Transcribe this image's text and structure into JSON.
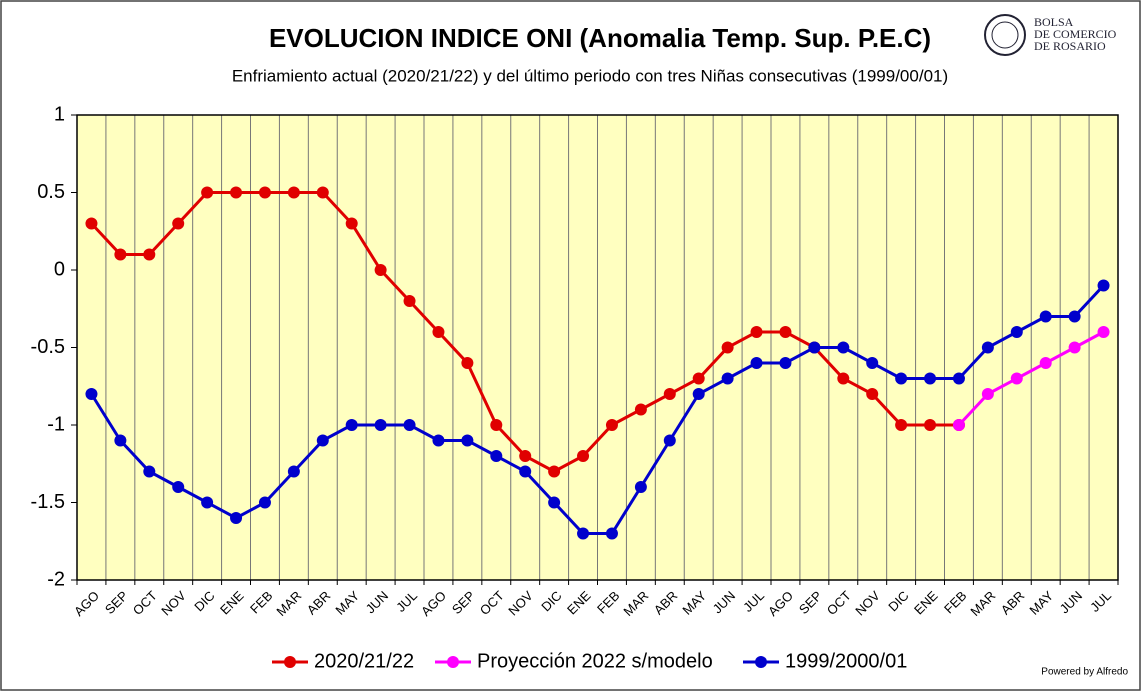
{
  "chart_data": {
    "type": "line",
    "title": "EVOLUCION INDICE ONI (Anomalia Temp. Sup. P.E.C)",
    "subtitle": "Enfriamiento actual (2020/21/22) y del último periodo con tres Niñas consecutivas (1999/00/01)",
    "logo": [
      "BOLSA",
      "DE COMERCIO",
      "DE ROSARIO"
    ],
    "credit": "Powered by Alfredo",
    "categories": [
      "AGO",
      "SEP",
      "OCT",
      "NOV",
      "DIC",
      "ENE",
      "FEB",
      "MAR",
      "ABR",
      "MAY",
      "JUN",
      "JUL",
      "AGO",
      "SEP",
      "OCT",
      "NOV",
      "DIC",
      "ENE",
      "FEB",
      "MAR",
      "ABR",
      "MAY",
      "JUN",
      "JUL",
      "AGO",
      "SEP",
      "OCT",
      "NOV",
      "DIC",
      "ENE",
      "FEB",
      "MAR",
      "ABR",
      "MAY",
      "JUN",
      "JUL"
    ],
    "series": [
      {
        "name": "2020/21/22",
        "color": "#e00000",
        "values": [
          0.3,
          0.1,
          0.1,
          0.3,
          0.5,
          0.5,
          0.5,
          0.5,
          0.5,
          0.3,
          0,
          -0.2,
          -0.4,
          -0.6,
          -1,
          -1.2,
          -1.3,
          -1.2,
          -1,
          -0.9,
          -0.8,
          -0.7,
          -0.5,
          -0.4,
          -0.4,
          -0.5,
          -0.7,
          -0.8,
          -1,
          -1,
          -1,
          null,
          null,
          null,
          null,
          null
        ]
      },
      {
        "name": "Proyección 2022 s/modelo",
        "color": "#ff00ff",
        "values": [
          null,
          null,
          null,
          null,
          null,
          null,
          null,
          null,
          null,
          null,
          null,
          null,
          null,
          null,
          null,
          null,
          null,
          null,
          null,
          null,
          null,
          null,
          null,
          null,
          null,
          null,
          null,
          null,
          null,
          null,
          -1,
          -0.8,
          -0.7,
          -0.6,
          -0.5,
          -0.4
        ]
      },
      {
        "name": "1999/2000/01",
        "color": "#0000cc",
        "values": [
          -0.8,
          -1.1,
          -1.3,
          -1.4,
          -1.5,
          -1.6,
          -1.5,
          -1.3,
          -1.1,
          -1,
          -1,
          -1,
          -1.1,
          -1.1,
          -1.2,
          -1.3,
          -1.5,
          -1.7,
          -1.7,
          -1.4,
          -1.1,
          -0.8,
          -0.7,
          -0.6,
          -0.6,
          -0.5,
          -0.5,
          -0.6,
          -0.7,
          -0.7,
          -0.7,
          -0.5,
          -0.4,
          -0.3,
          -0.3,
          -0.1
        ]
      }
    ],
    "ylim": [
      -2,
      1
    ],
    "yticks": [
      1,
      0.5,
      0,
      -0.5,
      -1,
      -1.5,
      -2
    ],
    "legend": "bottom"
  }
}
